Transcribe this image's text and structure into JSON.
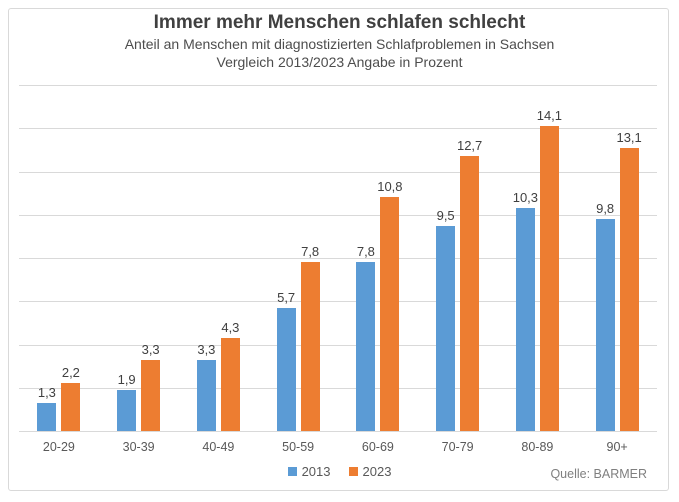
{
  "header": {
    "title": "Immer mehr Menschen schlafen schlecht",
    "subtitle_line1": "Anteil an Menschen mit diagnostizierten Schlafproblemen in Sachsen",
    "subtitle_line2": "Vergleich 2013/2023 Angabe in Prozent"
  },
  "chart_data": {
    "type": "bar",
    "title": "Immer mehr Menschen schlafen schlecht",
    "subtitle": "Anteil an Menschen mit diagnostizierten Schlafproblemen in Sachsen — Vergleich 2013/2023 Angabe in Prozent",
    "categories": [
      "20-29",
      "30-39",
      "40-49",
      "50-59",
      "60-69",
      "70-79",
      "80-89",
      "90+"
    ],
    "series": [
      {
        "name": "2013",
        "color": "#5B9BD5",
        "values": [
          1.3,
          1.9,
          3.3,
          5.7,
          7.8,
          9.5,
          10.3,
          9.8
        ]
      },
      {
        "name": "2023",
        "color": "#ED7D31",
        "values": [
          2.2,
          3.3,
          4.3,
          7.8,
          10.8,
          12.7,
          14.1,
          13.1
        ]
      }
    ],
    "xlabel": "",
    "ylabel": "",
    "ylim": [
      0,
      16
    ],
    "gridline_step": 2,
    "grid": true,
    "y_axis_labels_visible": false,
    "legend_position": "bottom-center",
    "value_label_decimal_separator": ","
  },
  "legend": {
    "items": [
      {
        "label": "2013",
        "color": "#5B9BD5"
      },
      {
        "label": "2023",
        "color": "#ED7D31"
      }
    ]
  },
  "footer": {
    "source": "Quelle: BARMER"
  },
  "colors": {
    "series_2013": "#5B9BD5",
    "series_2023": "#ED7D31",
    "gridline": "#D9D9D9",
    "frame_border": "#D9D9D9",
    "title_text": "#404040",
    "axis_text": "#595959",
    "source_text": "#7F7F7F"
  }
}
